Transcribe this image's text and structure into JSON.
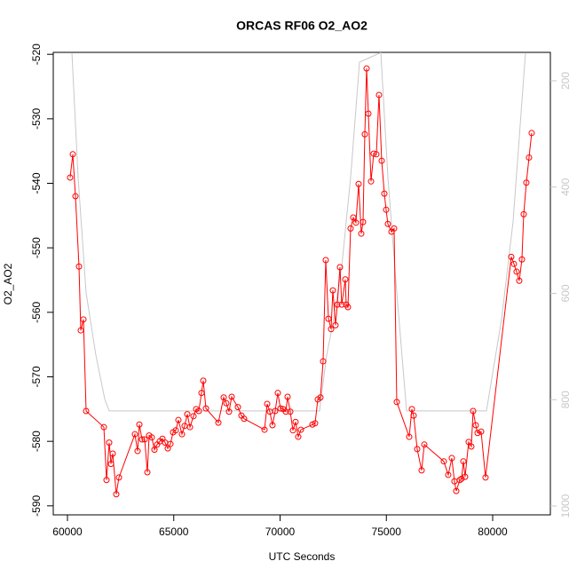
{
  "chart_data": {
    "type": "line",
    "title": "ORCAS RF06 O2_AO2",
    "xlabel": "UTC Seconds",
    "ylabel": "O2_AO2",
    "xlim": [
      59332,
      82714
    ],
    "xticks": [
      60000,
      65000,
      70000,
      75000,
      80000
    ],
    "ylim": [
      -591.4,
      -519.7
    ],
    "yticks": [
      -590,
      -580,
      -570,
      -560,
      -550,
      -540,
      -530,
      -520
    ],
    "y2lim": [
      1016.7,
      146.6
    ],
    "y2ticks": [
      200,
      400,
      600,
      800,
      1000
    ],
    "y2color": "#c8c8c8",
    "grid": false,
    "series": [
      {
        "color": "#ff0000",
        "marker": "circle",
        "x": [
          60125,
          60251,
          60376,
          60543,
          60626,
          60752,
          60877,
          61712,
          61837,
          61962,
          62046,
          62129,
          62296,
          62422,
          63173,
          63298,
          63382,
          63507,
          63632,
          63758,
          63841,
          63966,
          64092,
          64217,
          64342,
          64467,
          64593,
          64718,
          64843,
          64968,
          65094,
          65219,
          65386,
          65511,
          65636,
          65762,
          65929,
          66054,
          66179,
          66304,
          66388,
          66513,
          67098,
          67348,
          67473,
          67599,
          67724,
          68016,
          68183,
          68308,
          69269,
          69394,
          69519,
          69644,
          69770,
          69895,
          70020,
          70145,
          70271,
          70354,
          70479,
          70605,
          70730,
          70855,
          70980,
          71523,
          71648,
          71774,
          71899,
          72024,
          72149,
          72275,
          72400,
          72483,
          72609,
          72692,
          72817,
          72901,
          73068,
          73110,
          73193,
          73318,
          73444,
          73569,
          73694,
          73819,
          73903,
          73986,
          74070,
          74153,
          74279,
          74404,
          74529,
          74654,
          74780,
          74905,
          74988,
          75072,
          75239,
          75364,
          75489,
          76074,
          76199,
          76283,
          76450,
          76658,
          76784,
          77702,
          77911,
          78078,
          78203,
          78287,
          78454,
          78537,
          78621,
          78704,
          78871,
          78996,
          79080,
          79205,
          79289,
          79456,
          79664,
          80875,
          81000,
          81126,
          81251,
          81376,
          81460,
          81585,
          81710,
          81835
        ],
        "values": [
          -539.1,
          -535.5,
          -542.0,
          -552.9,
          -562.8,
          -561.1,
          -575.3,
          -577.8,
          -586.0,
          -580.2,
          -583.5,
          -581.9,
          -588.2,
          -585.6,
          -578.9,
          -581.5,
          -577.4,
          -579.7,
          -579.7,
          -584.8,
          -579.1,
          -579.4,
          -581.3,
          -580.5,
          -580.0,
          -579.6,
          -580.2,
          -581.1,
          -580.4,
          -578.6,
          -578.3,
          -576.7,
          -578.9,
          -577.6,
          -575.8,
          -577.8,
          -576.1,
          -575.0,
          -575.3,
          -572.5,
          -570.6,
          -574.9,
          -577.1,
          -573.2,
          -574.1,
          -575.4,
          -573.1,
          -574.7,
          -576.0,
          -576.5,
          -578.2,
          -574.2,
          -575.4,
          -577.5,
          -575.3,
          -572.5,
          -574.9,
          -575.0,
          -575.4,
          -573.1,
          -575.4,
          -578.3,
          -577.0,
          -579.3,
          -578.2,
          -577.4,
          -577.2,
          -573.5,
          -573.2,
          -567.6,
          -551.9,
          -561.0,
          -562.6,
          -556.6,
          -562.0,
          -558.8,
          -553.0,
          -558.8,
          -554.9,
          -558.8,
          -559.2,
          -547.0,
          -545.3,
          -546.1,
          -540.1,
          -547.8,
          -546.0,
          -532.4,
          -522.2,
          -529.2,
          -539.7,
          -535.4,
          -535.5,
          -526.3,
          -536.5,
          -541.6,
          -544.1,
          -546.3,
          -547.5,
          -547.0,
          -573.9,
          -579.3,
          -575.0,
          -576.0,
          -581.2,
          -584.5,
          -580.5,
          -583.1,
          -585.2,
          -582.6,
          -586.2,
          -587.7,
          -586.0,
          -585.8,
          -583.1,
          -585.5,
          -580.1,
          -580.8,
          -575.3,
          -577.5,
          -578.7,
          -578.5,
          -585.6,
          -551.4,
          -552.5,
          -553.7,
          -555.1,
          -551.8,
          -544.8,
          -539.9,
          -536.0,
          -532.2
        ]
      },
      {
        "color": "#c8c8c8",
        "axis": "y2",
        "x": [
          60209,
          60501,
          60877,
          61336,
          61754,
          61962,
          71858,
          72192,
          72484,
          72902,
          73319,
          73737,
          74739,
          75073,
          75491,
          75950,
          79708,
          80418,
          80960,
          81545
        ],
        "values": [
          147,
          382,
          599,
          716,
          799,
          821,
          821,
          716,
          657,
          549,
          382,
          165,
          147,
          382,
          599,
          821,
          821,
          649,
          465,
          147
        ]
      }
    ]
  }
}
